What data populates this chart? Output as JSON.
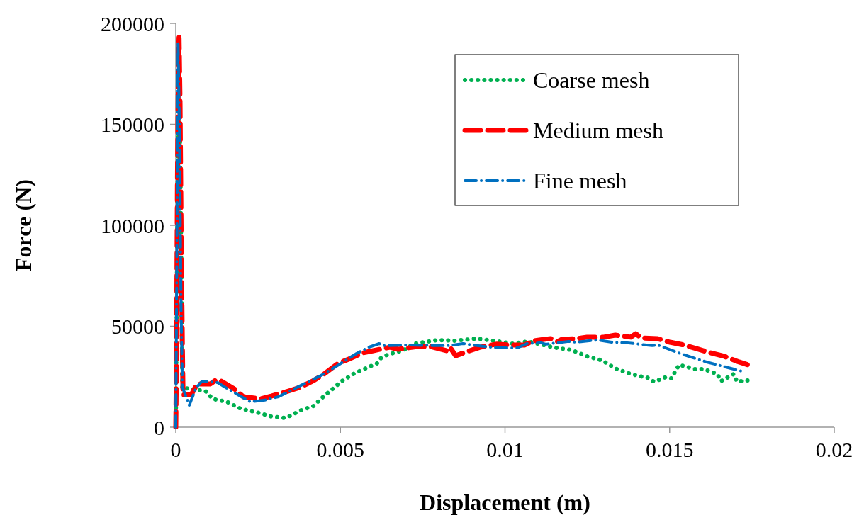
{
  "chart_data": {
    "type": "line",
    "xlabel": "Displacement (m)",
    "ylabel": "Force (N)",
    "xlim": [
      0,
      0.02
    ],
    "xticks": [
      0,
      0.005,
      0.01,
      0.015,
      0.02
    ],
    "ylim": [
      0,
      200000
    ],
    "yticks": [
      0,
      50000,
      100000,
      150000,
      200000
    ],
    "grid": false,
    "legend": "top right",
    "marker": "none",
    "series": [
      {
        "name": "Coarse mesh",
        "color": "#00b050",
        "line_style": "dotted",
        "x": [
          0,
          3e-05,
          6e-05,
          0.0001,
          0.00013,
          0.00017,
          0.0002,
          0.0003,
          0.0009,
          0.00112,
          0.00155,
          0.00198,
          0.00245,
          0.0029,
          0.0033,
          0.00353,
          0.00375,
          0.00418,
          0.0045,
          0.00474,
          0.00504,
          0.00543,
          0.00586,
          0.00611,
          0.00624,
          0.00646,
          0.00689,
          0.00725,
          0.00797,
          0.00844,
          0.00915,
          0.0098,
          0.01023,
          0.0107,
          0.01145,
          0.01203,
          0.01249,
          0.01296,
          0.01335,
          0.01376,
          0.01408,
          0.01432,
          0.01453,
          0.0149,
          0.01505,
          0.01529,
          0.01576,
          0.01604,
          0.01645,
          0.01656,
          0.01694,
          0.01705,
          0.01733,
          0.01752
        ],
        "values": [
          0,
          60000,
          130000,
          160000,
          140000,
          80000,
          19000,
          19300,
          17900,
          14000,
          12600,
          9100,
          7400,
          5300,
          4600,
          6000,
          8100,
          10500,
          15400,
          18600,
          22800,
          26700,
          29800,
          31600,
          34400,
          36100,
          37900,
          41400,
          43200,
          42800,
          43900,
          42500,
          41400,
          42500,
          39600,
          38200,
          35100,
          33000,
          29100,
          26700,
          25300,
          24600,
          22500,
          24900,
          24200,
          30900,
          28800,
          28800,
          26300,
          22800,
          26300,
          22500,
          23200,
          23200
        ]
      },
      {
        "name": "Medium mesh",
        "color": "#ff0000",
        "line_style": "dashed",
        "x": [
          0,
          2e-05,
          5e-05,
          8e-05,
          0.0001,
          0.00013,
          0.00016,
          0.0002,
          0.00022,
          0.00047,
          0.00065,
          0.00105,
          0.00123,
          0.00138,
          0.00181,
          0.00205,
          0.00258,
          0.0029,
          0.00342,
          0.00375,
          0.0042,
          0.0045,
          0.00493,
          0.00525,
          0.00568,
          0.006,
          0.0065,
          0.00676,
          0.00736,
          0.00773,
          0.00822,
          0.00833,
          0.0085,
          0.00893,
          0.00924,
          0.00973,
          0.0101,
          0.01059,
          0.01087,
          0.01139,
          0.0116,
          0.01173,
          0.01221,
          0.01249,
          0.013,
          0.01335,
          0.01382,
          0.01397,
          0.01414,
          0.01462,
          0.01501,
          0.01544,
          0.01582,
          0.01625,
          0.01666,
          0.01711,
          0.01752
        ],
        "values": [
          0,
          30000,
          120000,
          180000,
          193000,
          160000,
          100000,
          40000,
          16000,
          16100,
          21400,
          21400,
          23500,
          22800,
          18600,
          15100,
          14000,
          15400,
          17900,
          19600,
          23200,
          26300,
          31600,
          33700,
          36800,
          37900,
          39600,
          38600,
          40000,
          40000,
          37900,
          39600,
          35400,
          37900,
          39600,
          41100,
          40700,
          40700,
          42800,
          43900,
          42500,
          43500,
          43900,
          44600,
          44600,
          45600,
          44600,
          46300,
          44200,
          43900,
          42100,
          40700,
          38900,
          36800,
          35100,
          32300,
          30200
        ]
      },
      {
        "name": "Fine mesh",
        "color": "#0070c0",
        "line_style": "dashdot",
        "x": [
          0,
          3e-05,
          7e-05,
          0.00011,
          0.00016,
          0.0002,
          0.00041,
          0.00062,
          0.0008,
          0.00127,
          0.00155,
          0.00226,
          0.00267,
          0.00312,
          0.00385,
          0.00441,
          0.00484,
          0.00549,
          0.00586,
          0.00618,
          0.00629,
          0.007,
          0.00794,
          0.00829,
          0.00872,
          0.00915,
          0.00958,
          0.00995,
          0.01038,
          0.01066,
          0.01109,
          0.01124,
          0.01193,
          0.01214,
          0.01281,
          0.01324,
          0.01371,
          0.01447,
          0.01464,
          0.01539,
          0.01612,
          0.0172,
          0.01727
        ],
        "values": [
          0,
          80000,
          190000,
          150000,
          60000,
          20000,
          10900,
          19600,
          22800,
          22100,
          19300,
          12600,
          13300,
          15100,
          21100,
          25600,
          29800,
          36500,
          39600,
          41400,
          40400,
          40700,
          40400,
          40400,
          41400,
          40400,
          39600,
          39300,
          39300,
          41400,
          41800,
          41100,
          42500,
          42100,
          43200,
          42100,
          41800,
          40400,
          40700,
          36100,
          32300,
          27700,
          26700
        ]
      }
    ]
  }
}
